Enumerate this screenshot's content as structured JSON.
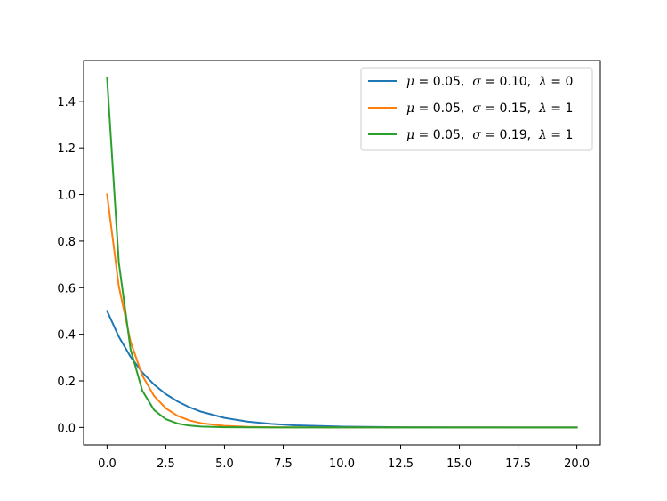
{
  "chart_data": {
    "type": "line",
    "title": "",
    "xlabel": "",
    "ylabel": "",
    "xlim": [
      -1.0,
      21.0
    ],
    "ylim": [
      -0.075,
      1.575
    ],
    "x_ticks": [
      0.0,
      2.5,
      5.0,
      7.5,
      10.0,
      12.5,
      15.0,
      17.5,
      20.0
    ],
    "x_tick_labels": [
      "0.0",
      "2.5",
      "5.0",
      "7.5",
      "10.0",
      "12.5",
      "15.0",
      "17.5",
      "20.0"
    ],
    "y_ticks": [
      0.0,
      0.2,
      0.4,
      0.6,
      0.8,
      1.0,
      1.2,
      1.4
    ],
    "y_tick_labels": [
      "0.0",
      "0.2",
      "0.4",
      "0.6",
      "0.8",
      "1.0",
      "1.2",
      "1.4"
    ],
    "grid": false,
    "legend_position": "top-right",
    "x": [
      0.0,
      0.5,
      1.0,
      1.5,
      2.0,
      2.5,
      3.0,
      3.5,
      4.0,
      5.0,
      6.0,
      7.0,
      8.0,
      10.0,
      12.5,
      15.0,
      17.5,
      20.0
    ],
    "series": [
      {
        "name": "μ = 0.05, σ = 0.10, λ = 0",
        "color": "#1f77b4",
        "values": [
          0.5,
          0.3894,
          0.3033,
          0.2362,
          0.1839,
          0.1433,
          0.1116,
          0.0869,
          0.0677,
          0.041,
          0.0249,
          0.0151,
          0.0092,
          0.0034,
          0.001,
          0.0003,
          0.0001,
          0.0
        ]
      },
      {
        "name": "μ = 0.05, σ = 0.15, λ = 1",
        "color": "#ff7f0e",
        "values": [
          1.0,
          0.6065,
          0.3679,
          0.2231,
          0.1353,
          0.0821,
          0.0498,
          0.0302,
          0.0183,
          0.0067,
          0.0025,
          0.0009,
          0.0003,
          0.0,
          0.0,
          0.0,
          0.0,
          0.0
        ]
      },
      {
        "name": "μ = 0.05, σ = 0.19, λ = 1",
        "color": "#2ca02c",
        "values": [
          1.5,
          0.7085,
          0.3347,
          0.1581,
          0.0747,
          0.0353,
          0.0167,
          0.0079,
          0.0037,
          0.0008,
          0.0002,
          0.0,
          0.0,
          0.0,
          0.0,
          0.0,
          0.0,
          0.0
        ]
      }
    ],
    "legend": [
      {
        "mu": "μ",
        "mu_val": " = 0.05,  ",
        "sigma": "σ",
        "sigma_val": " = 0.10,  ",
        "lambda": "λ",
        "lambda_val": " = 0"
      },
      {
        "mu": "μ",
        "mu_val": " = 0.05,  ",
        "sigma": "σ",
        "sigma_val": " = 0.15,  ",
        "lambda": "λ",
        "lambda_val": " = 1"
      },
      {
        "mu": "μ",
        "mu_val": " = 0.05,  ",
        "sigma": "σ",
        "sigma_val": " = 0.19,  ",
        "lambda": "λ",
        "lambda_val": " = 1"
      }
    ]
  }
}
